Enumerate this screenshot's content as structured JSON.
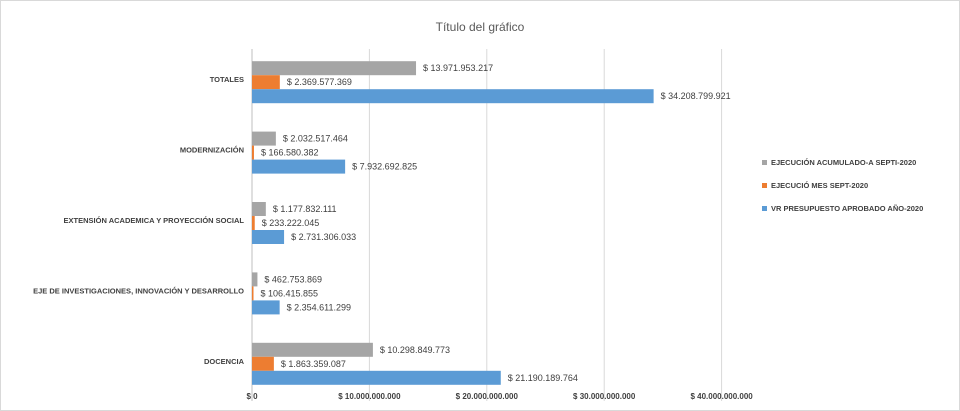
{
  "chart_data": {
    "type": "bar",
    "orientation": "horizontal",
    "title": "Título del gráfico",
    "categories": [
      "DOCENCIA",
      "EJE DE INVESTIGACIONES, INNOVACIÓN Y DESARROLLO",
      "EXTENSIÓN ACADEMICA Y PROYECCIÓN SOCIAL",
      "MODERNIZACIÓN",
      "TOTALES"
    ],
    "series": [
      {
        "name": "VR PRESUPUESTO APROBADO AÑO-2020",
        "color": "#5b9bd5",
        "values": [
          21190189764,
          2354611299,
          2731306033,
          7932692825,
          34208799921
        ],
        "labels": [
          "$ 21.190.189.764",
          "$ 2.354.611.299",
          "$ 2.731.306.033",
          "$ 7.932.692.825",
          "$ 34.208.799.921"
        ]
      },
      {
        "name": "EJECUCIÓ MES SEPT-2020",
        "color": "#ed7d31",
        "values": [
          1863359087,
          106415855,
          233222045,
          166580382,
          2369577369
        ],
        "labels": [
          "$ 1.863.359.087",
          "$ 106.415.855",
          "$ 233.222.045",
          "$ 166.580.382",
          "$ 2.369.577.369"
        ]
      },
      {
        "name": "EJECUCIÓN ACUMULADO-A SEPTI-2020",
        "color": "#a5a5a5",
        "values": [
          10298849773,
          462753869,
          1177832111,
          2032517464,
          13971953217
        ],
        "labels": [
          "$ 10.298.849.773",
          "$ 462.753.869",
          "$ 1.177.832.111",
          "$ 2.032.517.464",
          "$ 13.971.953.217"
        ]
      }
    ],
    "xlim": [
      0,
      50000000000
    ],
    "x_ticks": [
      0,
      10000000000,
      20000000000,
      30000000000,
      40000000000
    ],
    "x_tick_labels": [
      "$ 0",
      "$ 10.000.000.000",
      "$ 20.000.000.000",
      "$ 30.000.000.000",
      "$ 40.000.000.000"
    ],
    "grid": true,
    "legend_position": "right",
    "legend_order": [
      2,
      1,
      0
    ],
    "colors": {
      "gridline": "#d9d9d9",
      "axis": "#bfbfbf",
      "text": "#404040"
    }
  }
}
